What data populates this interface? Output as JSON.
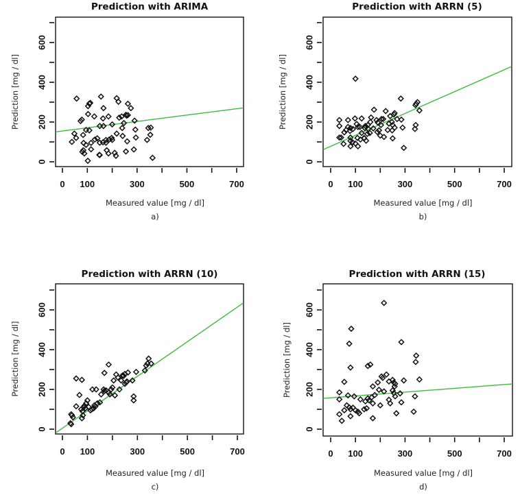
{
  "chart_data": [
    {
      "type": "scatter",
      "panel": "a)",
      "title": "Prediction with ARIMA",
      "xlabel": "Measured value [mg / dl]",
      "ylabel": "Prediction [mg / dl]",
      "xlim": [
        -30,
        730
      ],
      "ylim": [
        -30,
        700
      ],
      "xticks": [
        0,
        100,
        200,
        300,
        400,
        500,
        600,
        700
      ],
      "xtick_labels": [
        "0",
        "100",
        "",
        "300",
        "",
        "500",
        "",
        "700"
      ],
      "yticks": [
        0,
        100,
        200,
        300,
        400,
        500,
        600,
        700
      ],
      "ytick_labels": [
        "0",
        "",
        "200",
        "",
        "400",
        "",
        "600",
        ""
      ],
      "grid": false,
      "fit_line": {
        "intercept": 155,
        "slope": 0.16,
        "color": "#3cba3c"
      },
      "points": [
        [
          57,
          318
        ],
        [
          155,
          328
        ],
        [
          218,
          320
        ],
        [
          225,
          302
        ],
        [
          263,
          292
        ],
        [
          103,
          280
        ],
        [
          112,
          296
        ],
        [
          108,
          293
        ],
        [
          165,
          270
        ],
        [
          275,
          270
        ],
        [
          73,
          205
        ],
        [
          78,
          212
        ],
        [
          103,
          240
        ],
        [
          128,
          228
        ],
        [
          185,
          228
        ],
        [
          163,
          218
        ],
        [
          228,
          222
        ],
        [
          238,
          228
        ],
        [
          255,
          236
        ],
        [
          263,
          235
        ],
        [
          258,
          232
        ],
        [
          290,
          207
        ],
        [
          150,
          180
        ],
        [
          165,
          180
        ],
        [
          200,
          188
        ],
        [
          247,
          195
        ],
        [
          293,
          162
        ],
        [
          240,
          170
        ],
        [
          345,
          170
        ],
        [
          355,
          172
        ],
        [
          48,
          142
        ],
        [
          55,
          120
        ],
        [
          95,
          160
        ],
        [
          108,
          158
        ],
        [
          83,
          135
        ],
        [
          38,
          100
        ],
        [
          85,
          95
        ],
        [
          95,
          85
        ],
        [
          115,
          95
        ],
        [
          130,
          112
        ],
        [
          140,
          118
        ],
        [
          150,
          96
        ],
        [
          163,
          98
        ],
        [
          175,
          110
        ],
        [
          188,
          112
        ],
        [
          198,
          120
        ],
        [
          200,
          110
        ],
        [
          218,
          142
        ],
        [
          242,
          130
        ],
        [
          260,
          103
        ],
        [
          295,
          122
        ],
        [
          340,
          110
        ],
        [
          353,
          136
        ],
        [
          84,
          58
        ],
        [
          88,
          42
        ],
        [
          115,
          63
        ],
        [
          150,
          34
        ],
        [
          178,
          58
        ],
        [
          185,
          42
        ],
        [
          210,
          45
        ],
        [
          215,
          30
        ],
        [
          255,
          52
        ],
        [
          287,
          62
        ],
        [
          102,
          5
        ],
        [
          362,
          20
        ],
        [
          148,
          35
        ],
        [
          80,
          50
        ],
        [
          175,
          96
        ]
      ]
    },
    {
      "type": "scatter",
      "panel": "b)",
      "title": "Prediction with ARRN (5)",
      "xlabel": "Measured value [mg / dl]",
      "ylabel": "Prediction [mg / dl]",
      "xlim": [
        -30,
        730
      ],
      "ylim": [
        -30,
        700
      ],
      "xticks": [
        0,
        100,
        200,
        300,
        400,
        500,
        600,
        700
      ],
      "xtick_labels": [
        "0",
        "100",
        "",
        "300",
        "",
        "500",
        "",
        "700"
      ],
      "yticks": [
        0,
        100,
        200,
        300,
        400,
        500,
        600,
        700
      ],
      "ytick_labels": [
        "0",
        "",
        "200",
        "",
        "400",
        "",
        "600",
        ""
      ],
      "grid": false,
      "fit_line": {
        "intercept": 78,
        "slope": 0.55,
        "color": "#3cba3c"
      },
      "points": [
        [
          100,
          418
        ],
        [
          283,
          318
        ],
        [
          345,
          292
        ],
        [
          350,
          300
        ],
        [
          342,
          285
        ],
        [
          358,
          258
        ],
        [
          175,
          262
        ],
        [
          222,
          255
        ],
        [
          258,
          245
        ],
        [
          255,
          238
        ],
        [
          240,
          230
        ],
        [
          268,
          215
        ],
        [
          285,
          212
        ],
        [
          35,
          210
        ],
        [
          70,
          210
        ],
        [
          98,
          218
        ],
        [
          125,
          218
        ],
        [
          163,
          223
        ],
        [
          205,
          215
        ],
        [
          212,
          215
        ],
        [
          185,
          210
        ],
        [
          160,
          200
        ],
        [
          150,
          185
        ],
        [
          140,
          180
        ],
        [
          35,
          180
        ],
        [
          70,
          175
        ],
        [
          80,
          170
        ],
        [
          105,
          190
        ],
        [
          110,
          175
        ],
        [
          118,
          175
        ],
        [
          138,
          170
        ],
        [
          152,
          165
        ],
        [
          172,
          168
        ],
        [
          190,
          198
        ],
        [
          203,
          185
        ],
        [
          235,
          192
        ],
        [
          247,
          200
        ],
        [
          250,
          185
        ],
        [
          258,
          172
        ],
        [
          290,
          172
        ],
        [
          55,
          148
        ],
        [
          62,
          160
        ],
        [
          78,
          155
        ],
        [
          90,
          165
        ],
        [
          108,
          120
        ],
        [
          125,
          145
        ],
        [
          135,
          120
        ],
        [
          148,
          140
        ],
        [
          158,
          145
        ],
        [
          188,
          150
        ],
        [
          195,
          158
        ],
        [
          200,
          132
        ],
        [
          215,
          125
        ],
        [
          230,
          160
        ],
        [
          248,
          158
        ],
        [
          340,
          165
        ],
        [
          343,
          185
        ],
        [
          35,
          122
        ],
        [
          42,
          122
        ],
        [
          80,
          122
        ],
        [
          88,
          98
        ],
        [
          100,
          92
        ],
        [
          120,
          112
        ],
        [
          135,
          118
        ],
        [
          143,
          106
        ],
        [
          52,
          90
        ],
        [
          80,
          78
        ],
        [
          110,
          78
        ],
        [
          250,
          118
        ],
        [
          295,
          70
        ],
        [
          80,
          105
        ]
      ]
    },
    {
      "type": "scatter",
      "panel": "c)",
      "title": "Prediction with ARRN (10)",
      "xlabel": "Measured value [mg / dl]",
      "ylabel": "Prediction [mg / dl]",
      "xlim": [
        -30,
        730
      ],
      "ylim": [
        -30,
        700
      ],
      "xticks": [
        0,
        100,
        200,
        300,
        400,
        500,
        600,
        700
      ],
      "xtick_labels": [
        "0",
        "100",
        "",
        "300",
        "",
        "500",
        "",
        "700"
      ],
      "yticks": [
        0,
        100,
        200,
        300,
        400,
        500,
        600,
        700
      ],
      "ytick_labels": [
        "0",
        "",
        "200",
        "",
        "400",
        "",
        "600",
        ""
      ],
      "grid": false,
      "fit_line": {
        "intercept": 5,
        "slope": 0.87,
        "color": "#3cba3c"
      },
      "points": [
        [
          185,
          325
        ],
        [
          55,
          255
        ],
        [
          78,
          248
        ],
        [
          168,
          283
        ],
        [
          345,
          355
        ],
        [
          335,
          320
        ],
        [
          340,
          330
        ],
        [
          355,
          330
        ],
        [
          330,
          295
        ],
        [
          295,
          288
        ],
        [
          262,
          285
        ],
        [
          250,
          278
        ],
        [
          245,
          268
        ],
        [
          215,
          275
        ],
        [
          222,
          260
        ],
        [
          240,
          270
        ],
        [
          235,
          245
        ],
        [
          205,
          245
        ],
        [
          258,
          240
        ],
        [
          280,
          245
        ],
        [
          228,
          200
        ],
        [
          250,
          228
        ],
        [
          255,
          235
        ],
        [
          210,
          170
        ],
        [
          285,
          165
        ],
        [
          285,
          145
        ],
        [
          200,
          210
        ],
        [
          195,
          200
        ],
        [
          185,
          185
        ],
        [
          190,
          175
        ],
        [
          165,
          200
        ],
        [
          168,
          192
        ],
        [
          175,
          195
        ],
        [
          155,
          175
        ],
        [
          120,
          200
        ],
        [
          135,
          200
        ],
        [
          68,
          172
        ],
        [
          150,
          135
        ],
        [
          140,
          130
        ],
        [
          132,
          115
        ],
        [
          128,
          120
        ],
        [
          125,
          105
        ],
        [
          118,
          100
        ],
        [
          112,
          95
        ],
        [
          100,
          145
        ],
        [
          95,
          130
        ],
        [
          88,
          118
        ],
        [
          85,
          110
        ],
        [
          92,
          105
        ],
        [
          105,
          112
        ],
        [
          75,
          100
        ],
        [
          80,
          90
        ],
        [
          82,
          70
        ],
        [
          78,
          55
        ],
        [
          55,
          115
        ],
        [
          42,
          60
        ],
        [
          35,
          75
        ],
        [
          38,
          70
        ],
        [
          32,
          30
        ],
        [
          35,
          25
        ]
      ]
    },
    {
      "type": "scatter",
      "panel": "d)",
      "title": "Prediction with ARRN (15)",
      "xlabel": "Measured value [mg / dl]",
      "ylabel": "Prediction [mg / dl]",
      "xlim": [
        -30,
        730
      ],
      "ylim": [
        -30,
        700
      ],
      "xticks": [
        0,
        100,
        200,
        300,
        400,
        500,
        600,
        700
      ],
      "xtick_labels": [
        "0",
        "100",
        "",
        "300",
        "",
        "500",
        "",
        "700"
      ],
      "yticks": [
        0,
        100,
        200,
        300,
        400,
        500,
        600,
        700
      ],
      "ytick_labels": [
        "0",
        "",
        "200",
        "",
        "400",
        "",
        "600",
        ""
      ],
      "grid": false,
      "fit_line": {
        "intercept": 158,
        "slope": 0.095,
        "color": "#3cba3c"
      },
      "points": [
        [
          215,
          635
        ],
        [
          83,
          505
        ],
        [
          75,
          430
        ],
        [
          285,
          438
        ],
        [
          345,
          370
        ],
        [
          343,
          338
        ],
        [
          80,
          310
        ],
        [
          150,
          318
        ],
        [
          160,
          325
        ],
        [
          358,
          250
        ],
        [
          55,
          238
        ],
        [
          295,
          245
        ],
        [
          225,
          275
        ],
        [
          205,
          265
        ],
        [
          210,
          258
        ],
        [
          235,
          240
        ],
        [
          250,
          248
        ],
        [
          255,
          235
        ],
        [
          260,
          228
        ],
        [
          258,
          215
        ],
        [
          190,
          235
        ],
        [
          170,
          215
        ],
        [
          195,
          198
        ],
        [
          215,
          190
        ],
        [
          250,
          195
        ],
        [
          255,
          182
        ],
        [
          280,
          180
        ],
        [
          340,
          165
        ],
        [
          35,
          185
        ],
        [
          35,
          150
        ],
        [
          70,
          170
        ],
        [
          95,
          165
        ],
        [
          120,
          150
        ],
        [
          140,
          140
        ],
        [
          150,
          155
        ],
        [
          165,
          160
        ],
        [
          178,
          172
        ],
        [
          170,
          130
        ],
        [
          200,
          120
        ],
        [
          235,
          148
        ],
        [
          240,
          130
        ],
        [
          260,
          165
        ],
        [
          285,
          135
        ],
        [
          65,
          120
        ],
        [
          75,
          110
        ],
        [
          80,
          100
        ],
        [
          90,
          108
        ],
        [
          100,
          95
        ],
        [
          110,
          88
        ],
        [
          115,
          80
        ],
        [
          135,
          100
        ],
        [
          145,
          105
        ],
        [
          55,
          95
        ],
        [
          35,
          75
        ],
        [
          45,
          42
        ],
        [
          80,
          65
        ],
        [
          170,
          55
        ],
        [
          265,
          80
        ],
        [
          335,
          88
        ],
        [
          155,
          145
        ]
      ]
    }
  ]
}
